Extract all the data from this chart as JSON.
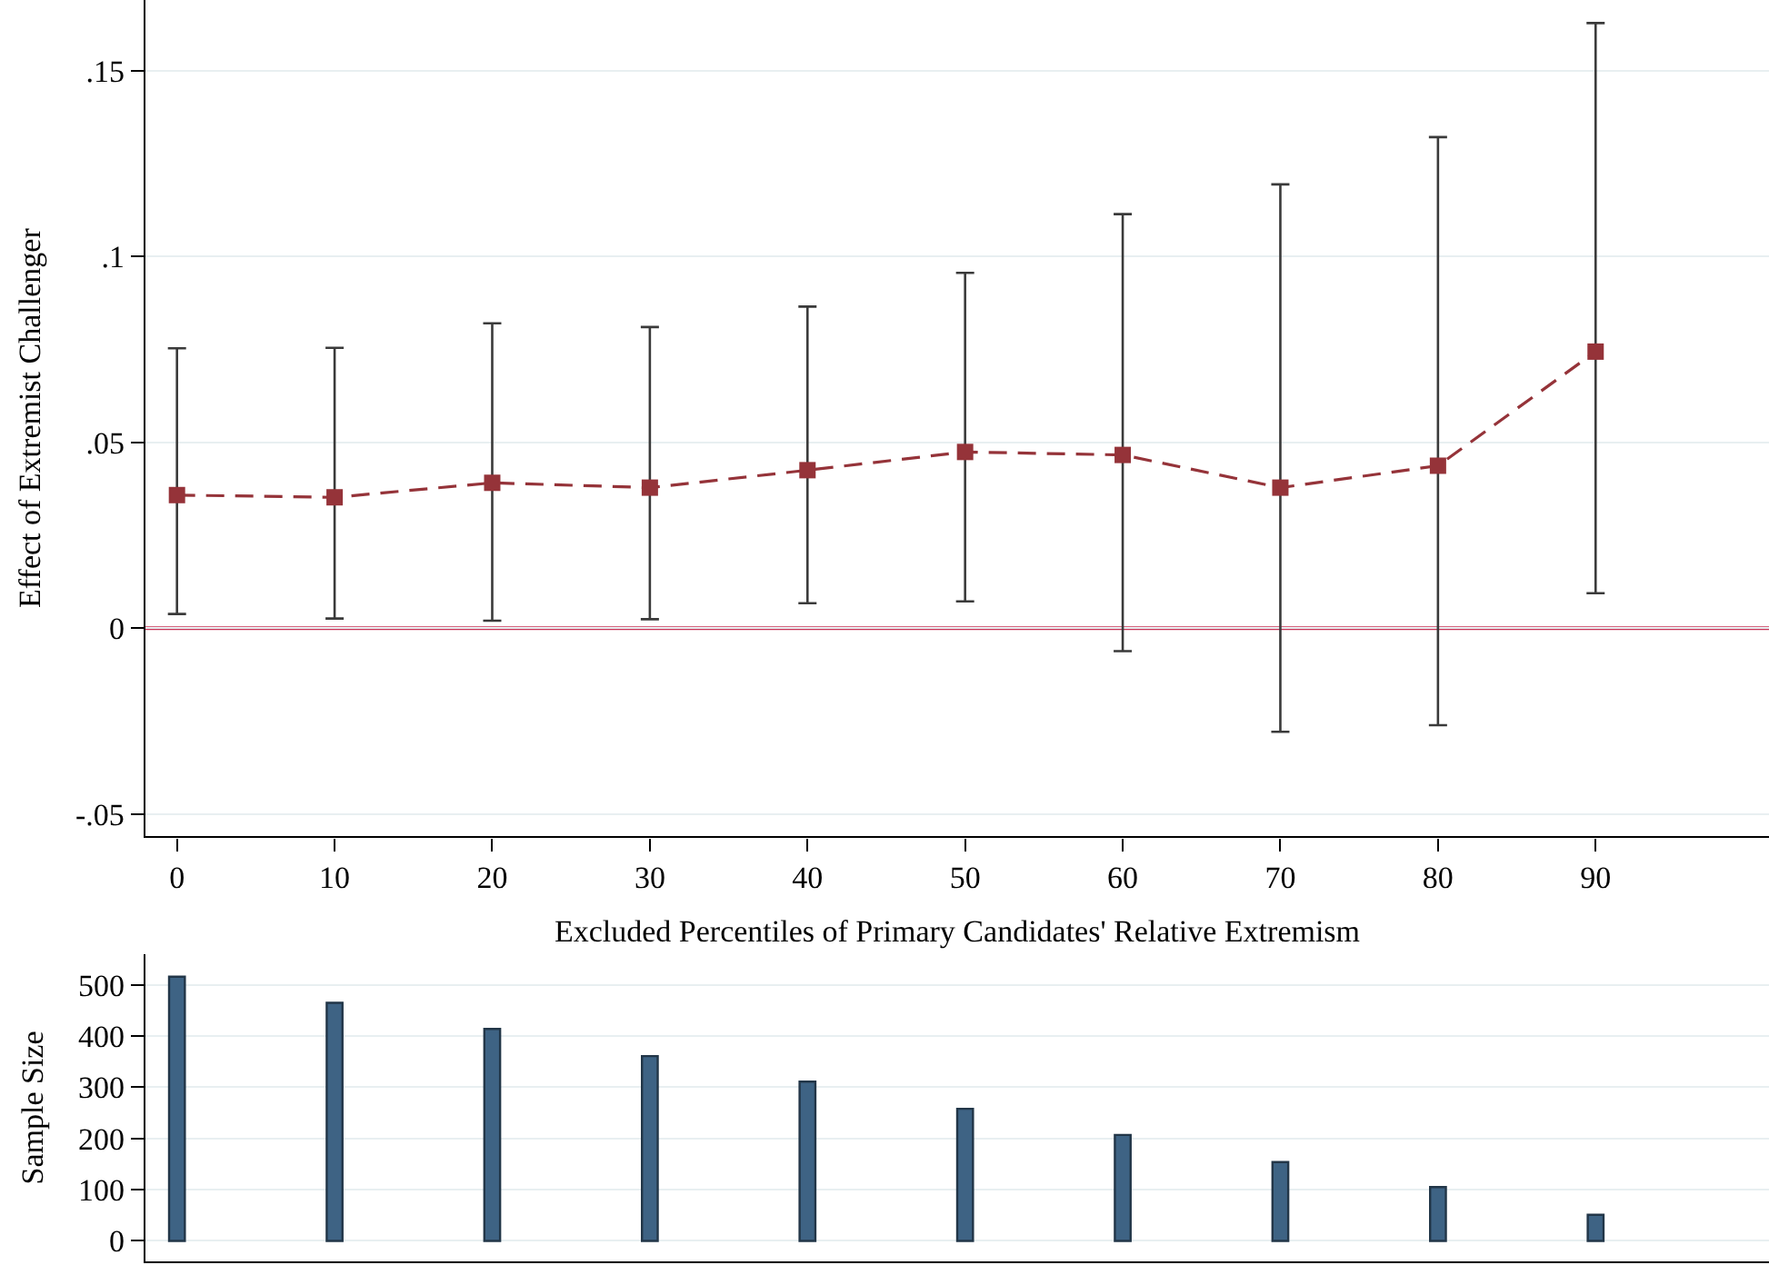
{
  "chart_data": [
    {
      "type": "line",
      "xlabel": "Excluded Percentiles of Primary Candidates' Relative Extremism",
      "ylabel": "Effect of Extremist Challenger",
      "x": [
        0,
        10,
        20,
        30,
        40,
        50,
        60,
        70,
        80,
        90
      ],
      "series": [
        {
          "color": "#953339",
          "values": [
            0.0358,
            0.0352,
            0.0391,
            0.0378,
            0.0425,
            0.0474,
            0.0466,
            0.0378,
            0.0437,
            0.0744
          ],
          "errors": [
            [
              0.0038,
              0.0753
            ],
            [
              0.0026,
              0.0754
            ],
            [
              0.002,
              0.082
            ],
            [
              0.0024,
              0.081
            ],
            [
              0.0067,
              0.0865
            ],
            [
              0.0072,
              0.0956
            ],
            [
              -0.0062,
              0.1114
            ],
            [
              -0.0279,
              0.1194
            ],
            [
              -0.0261,
              0.1321
            ],
            [
              0.0094,
              0.1628
            ]
          ]
        }
      ],
      "xlim": [
        -2,
        101
      ],
      "ylim": [
        -0.056,
        0.169
      ],
      "xticks": [
        0,
        10,
        20,
        30,
        40,
        50,
        60,
        70,
        80,
        90
      ],
      "yticks": [
        {
          "value": -0.05,
          "label": "-.05"
        },
        0,
        {
          "value": 0.05,
          "label": ".05"
        },
        {
          "value": 0.1,
          "label": ".1"
        },
        {
          "value": 0.15,
          "label": ".15"
        }
      ],
      "ref_lines": [
        {
          "axis": "y",
          "value": 0,
          "color": "#c93356"
        }
      ],
      "grid": "y",
      "marker": "square",
      "line_style": "dashed"
    },
    {
      "type": "bar",
      "ylabel": "Sample Size",
      "x": [
        0,
        10,
        20,
        30,
        40,
        50,
        60,
        70,
        80,
        90
      ],
      "values": [
        516,
        465,
        414,
        361,
        311,
        258,
        207,
        154,
        105,
        51
      ],
      "color": "#3e6384",
      "xlim": [
        -2,
        101
      ],
      "ylim": [
        -40,
        560
      ],
      "yticks": [
        0,
        100,
        200,
        300,
        400,
        500
      ],
      "tick_labels": "y",
      "grid": "y"
    }
  ]
}
